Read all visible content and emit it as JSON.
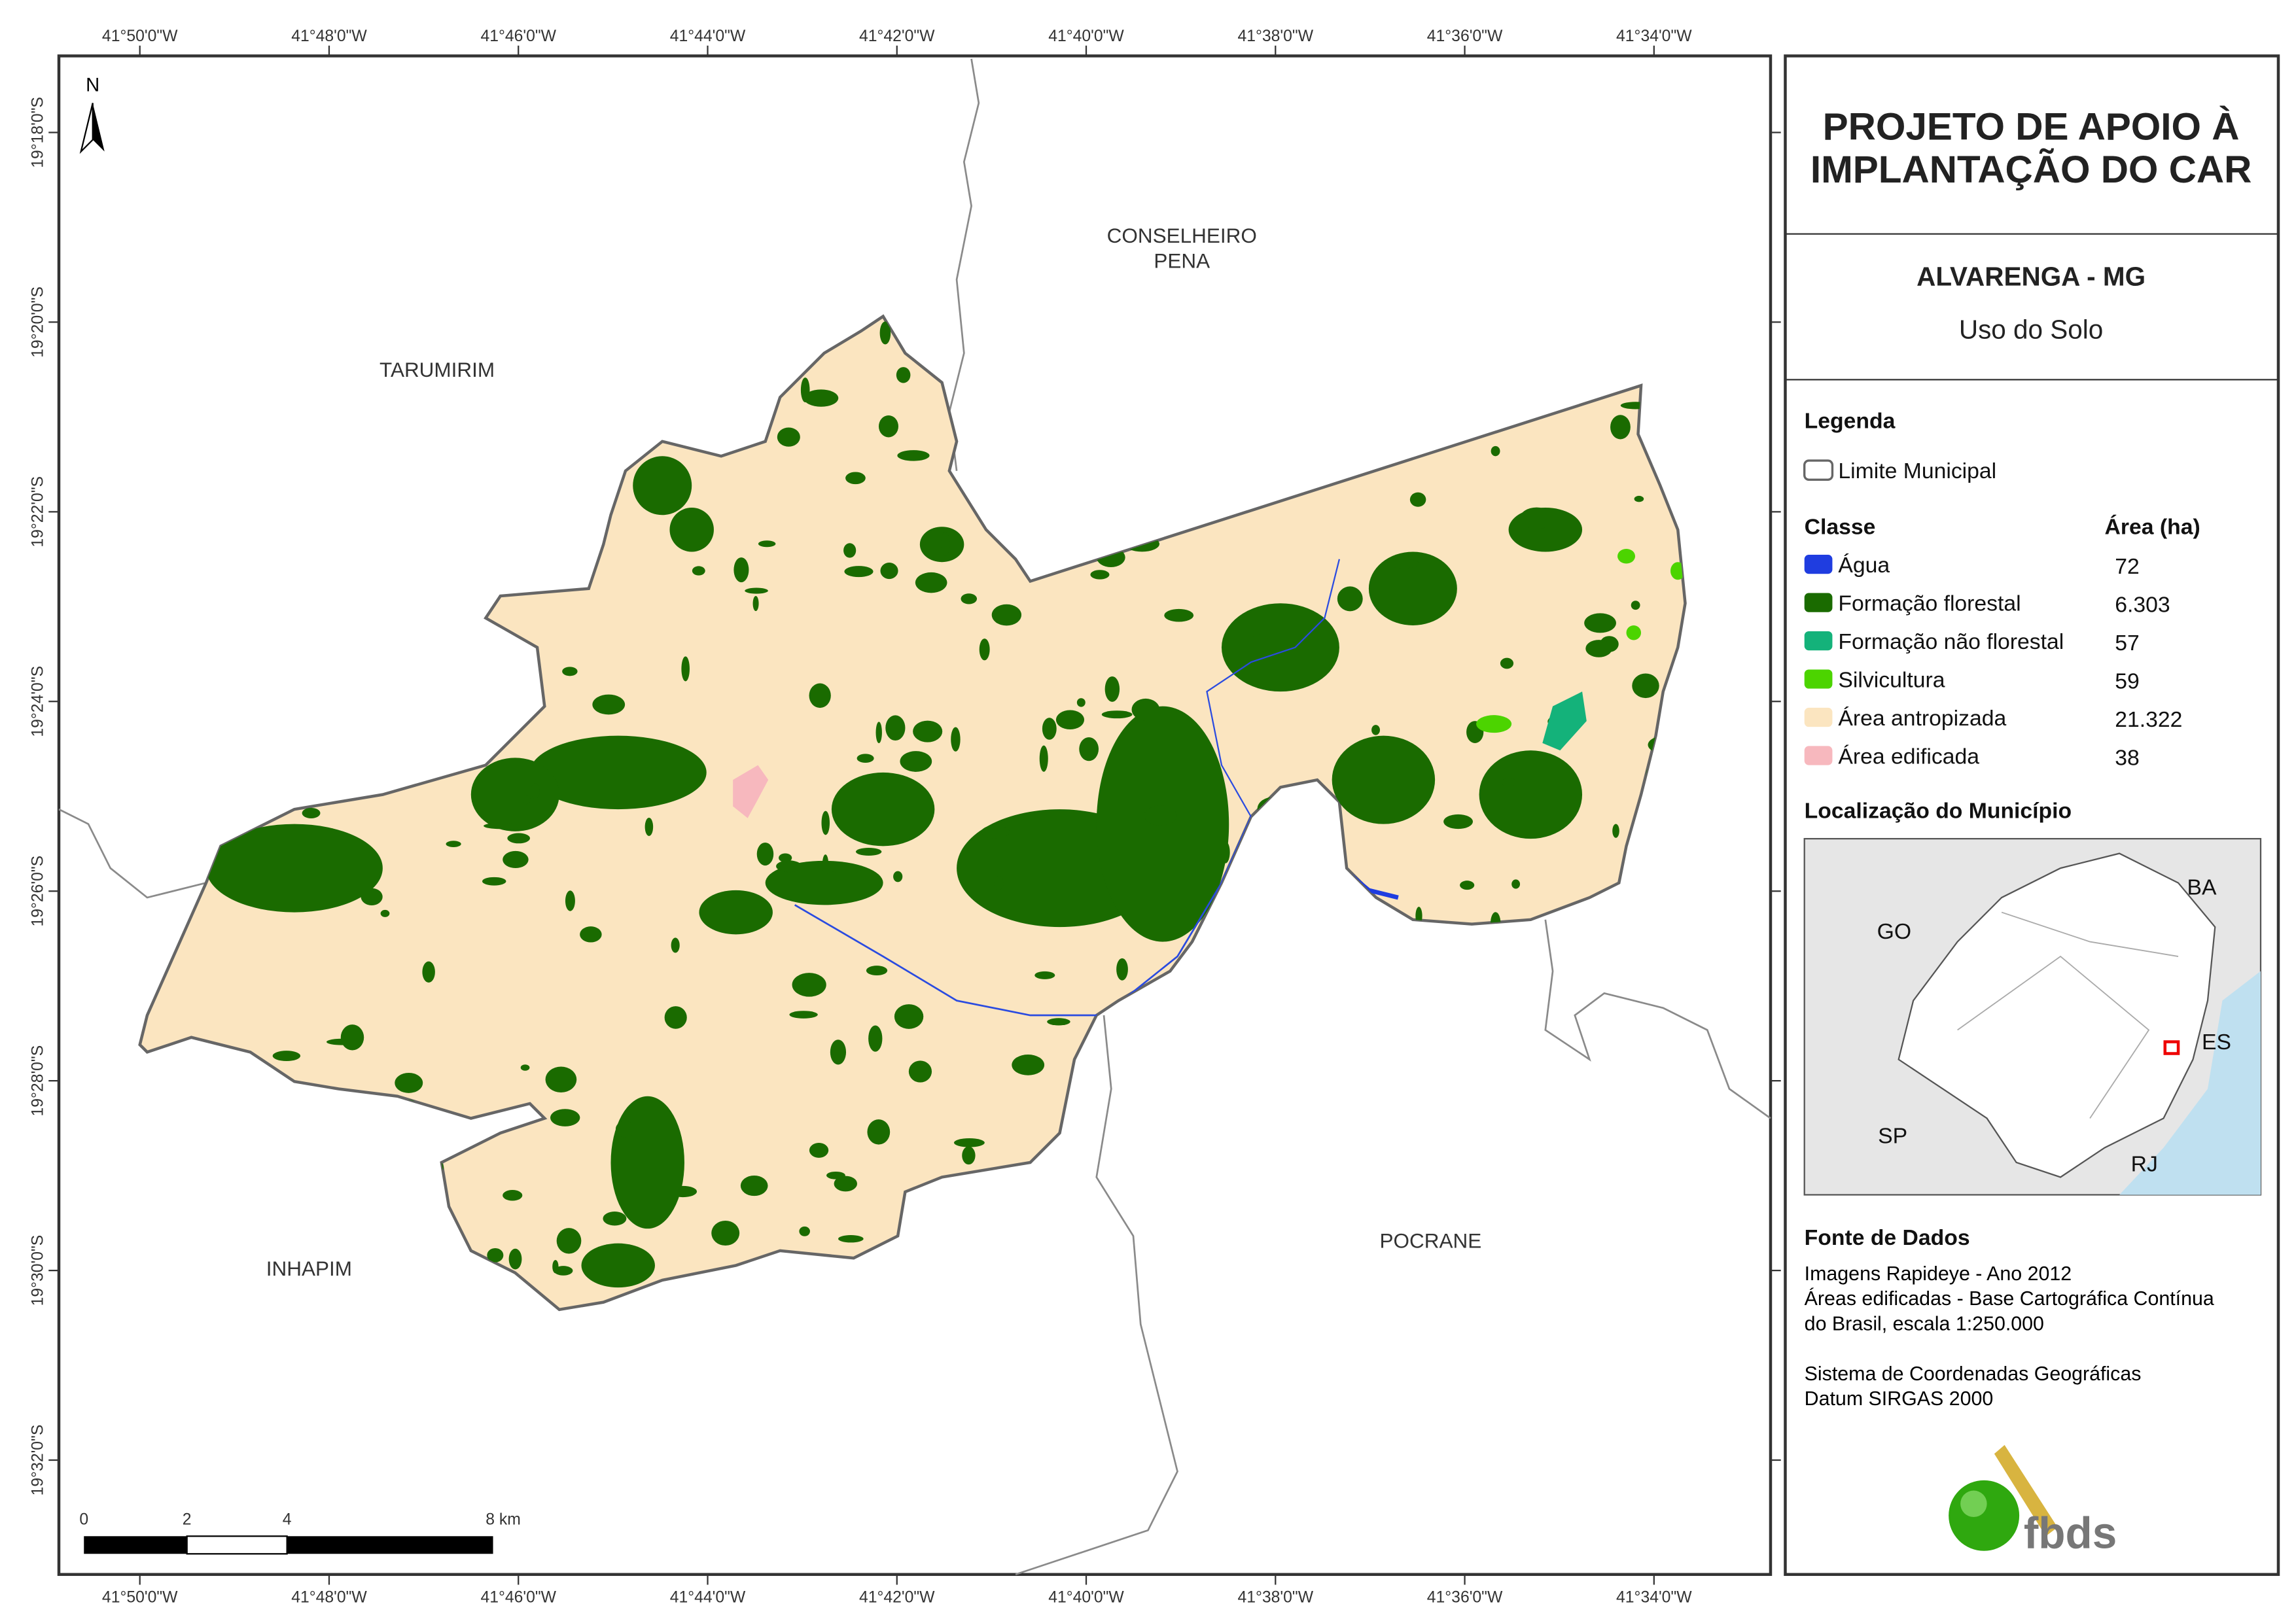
{
  "header": {
    "lines": [
      "PROJETO DE APOIO À",
      "IMPLANTAÇÃO DO CAR"
    ]
  },
  "subtitle": {
    "municipality": "ALVARENGA - MG",
    "theme": "Uso do Solo"
  },
  "legend": {
    "title": "Legenda",
    "boundary": "Limite Municipal",
    "class_header": "Classe",
    "area_header": "Área (ha)",
    "classes": [
      {
        "name": "Água",
        "area": "72",
        "color": "#1f3de0"
      },
      {
        "name": "Formação florestal",
        "area": "6.303",
        "color": "#1a6b00"
      },
      {
        "name": "Formação não florestal",
        "area": "57",
        "color": "#14b27a"
      },
      {
        "name": "Silvicultura",
        "area": "59",
        "color": "#4cd400"
      },
      {
        "name": "Área antropizada",
        "area": "21.322",
        "color": "#fbe5c0"
      },
      {
        "name": "Área edificada",
        "area": "38",
        "color": "#f7b8be"
      }
    ]
  },
  "location": {
    "title": "Localização do Município",
    "labels": [
      "BA",
      "GO",
      "ES",
      "SP",
      "RJ"
    ]
  },
  "sources": {
    "title": "Fonte de Dados",
    "lines": [
      "Imagens Rapideye - Ano 2012",
      "Áreas edificadas - Base Cartográfica Contínua",
      "do Brasil, escala 1:250.000",
      "Sistema de Coordenadas Geográficas",
      "Datum SIRGAS 2000"
    ]
  },
  "map": {
    "north": "N",
    "places": [
      "TARUMIRIM",
      "CONSELHEIRO",
      "PENA",
      "INHAPIM",
      "POCRANE"
    ],
    "x_ticks": [
      "41°50'0\"W",
      "41°48'0\"W",
      "41°46'0\"W",
      "41°44'0\"W",
      "41°42'0\"W",
      "41°40'0\"W",
      "41°38'0\"W",
      "41°36'0\"W",
      "41°34'0\"W"
    ],
    "y_ticks": [
      "19°18'0\"S",
      "19°20'0\"S",
      "19°22'0\"S",
      "19°24'0\"S",
      "19°26'0\"S",
      "19°28'0\"S",
      "19°30'0\"S",
      "19°32'0\"S"
    ],
    "scale": [
      "0",
      "2",
      "4",
      "8 km"
    ]
  },
  "logo": "fbds"
}
